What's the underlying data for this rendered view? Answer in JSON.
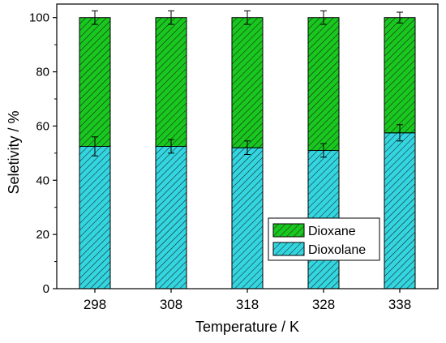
{
  "chart_data": {
    "type": "bar",
    "stacked": true,
    "categories": [
      "298",
      "308",
      "318",
      "328",
      "338"
    ],
    "xlabel": "Temperature / K",
    "ylabel": "Seletivity / %",
    "ylim": [
      0,
      105
    ],
    "yticks": [
      "0",
      "20",
      "40",
      "60",
      "80",
      "100"
    ],
    "grid": false,
    "legend_position": "bottom-right",
    "series": [
      {
        "name": "Dioxolane",
        "values": [
          52.5,
          52.5,
          52,
          51,
          57.5
        ],
        "error": [
          3.5,
          2.5,
          2.5,
          2.5,
          3.0
        ],
        "color": "#33d6e0",
        "pattern": "diagonal-hatch"
      },
      {
        "name": "Dioxane",
        "values": [
          47.5,
          47.5,
          48,
          49,
          42.5
        ],
        "error": [
          2.5,
          2.5,
          2.5,
          2.5,
          2.0
        ],
        "color": "#19c81e",
        "pattern": "diagonal-hatch"
      }
    ]
  }
}
